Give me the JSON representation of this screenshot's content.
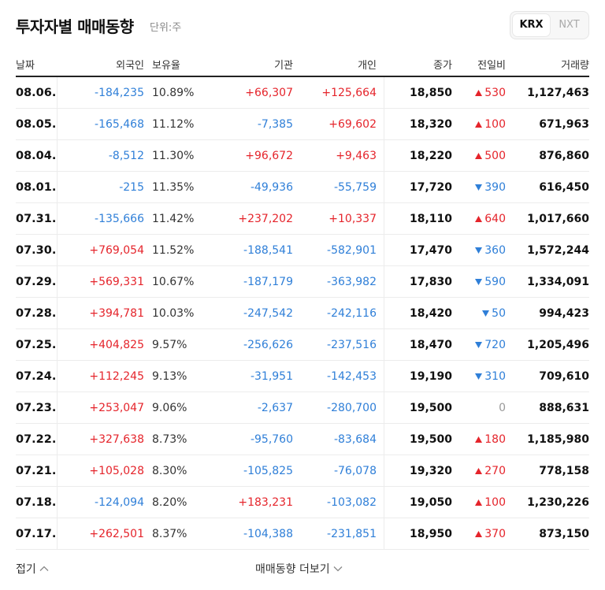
{
  "header": {
    "title": "투자자별 매매동향",
    "unit": "단위:주"
  },
  "segment": {
    "krx": "KRX",
    "nxt": "NXT"
  },
  "columns": {
    "date": "날짜",
    "foreign": "외국인",
    "holding": "보유율",
    "institution": "기관",
    "individual": "개인",
    "close": "종가",
    "change": "전일비",
    "volume": "거래량"
  },
  "rows": [
    {
      "date": "08.06.",
      "foreign": "-184,235",
      "holding": "10.89%",
      "institution": "+66,307",
      "individual": "+125,664",
      "close": "18,850",
      "change": "530",
      "change_dir": "up",
      "volume": "1,127,463"
    },
    {
      "date": "08.05.",
      "foreign": "-165,468",
      "holding": "11.12%",
      "institution": "-7,385",
      "individual": "+69,602",
      "close": "18,320",
      "change": "100",
      "change_dir": "up",
      "volume": "671,963"
    },
    {
      "date": "08.04.",
      "foreign": "-8,512",
      "holding": "11.30%",
      "institution": "+96,672",
      "individual": "+9,463",
      "close": "18,220",
      "change": "500",
      "change_dir": "up",
      "volume": "876,860"
    },
    {
      "date": "08.01.",
      "foreign": "-215",
      "holding": "11.35%",
      "institution": "-49,936",
      "individual": "-55,759",
      "close": "17,720",
      "change": "390",
      "change_dir": "down",
      "volume": "616,450"
    },
    {
      "date": "07.31.",
      "foreign": "-135,666",
      "holding": "11.42%",
      "institution": "+237,202",
      "individual": "+10,337",
      "close": "18,110",
      "change": "640",
      "change_dir": "up",
      "volume": "1,017,660"
    },
    {
      "date": "07.30.",
      "foreign": "+769,054",
      "holding": "11.52%",
      "institution": "-188,541",
      "individual": "-582,901",
      "close": "17,470",
      "change": "360",
      "change_dir": "down",
      "volume": "1,572,244"
    },
    {
      "date": "07.29.",
      "foreign": "+569,331",
      "holding": "10.67%",
      "institution": "-187,179",
      "individual": "-363,982",
      "close": "17,830",
      "change": "590",
      "change_dir": "down",
      "volume": "1,334,091"
    },
    {
      "date": "07.28.",
      "foreign": "+394,781",
      "holding": "10.03%",
      "institution": "-247,542",
      "individual": "-242,116",
      "close": "18,420",
      "change": "50",
      "change_dir": "down",
      "volume": "994,423"
    },
    {
      "date": "07.25.",
      "foreign": "+404,825",
      "holding": "9.57%",
      "institution": "-256,626",
      "individual": "-237,516",
      "close": "18,470",
      "change": "720",
      "change_dir": "down",
      "volume": "1,205,496"
    },
    {
      "date": "07.24.",
      "foreign": "+112,245",
      "holding": "9.13%",
      "institution": "-31,951",
      "individual": "-142,453",
      "close": "19,190",
      "change": "310",
      "change_dir": "down",
      "volume": "709,610"
    },
    {
      "date": "07.23.",
      "foreign": "+253,047",
      "holding": "9.06%",
      "institution": "-2,637",
      "individual": "-280,700",
      "close": "19,500",
      "change": "0",
      "change_dir": "none",
      "volume": "888,631"
    },
    {
      "date": "07.22.",
      "foreign": "+327,638",
      "holding": "8.73%",
      "institution": "-95,760",
      "individual": "-83,684",
      "close": "19,500",
      "change": "180",
      "change_dir": "up",
      "volume": "1,185,980"
    },
    {
      "date": "07.21.",
      "foreign": "+105,028",
      "holding": "8.30%",
      "institution": "-105,825",
      "individual": "-76,078",
      "close": "19,320",
      "change": "270",
      "change_dir": "up",
      "volume": "778,158"
    },
    {
      "date": "07.18.",
      "foreign": "-124,094",
      "holding": "8.20%",
      "institution": "+183,231",
      "individual": "-103,082",
      "close": "19,050",
      "change": "100",
      "change_dir": "up",
      "volume": "1,230,226"
    },
    {
      "date": "07.17.",
      "foreign": "+262,501",
      "holding": "8.37%",
      "institution": "-104,388",
      "individual": "-231,851",
      "close": "18,950",
      "change": "370",
      "change_dir": "up",
      "volume": "873,150"
    }
  ],
  "footer": {
    "fold": "접기",
    "more": "매매동향 더보기"
  },
  "colors": {
    "up": "#e5242b",
    "down": "#2f7fd8",
    "neutral": "#999999"
  }
}
